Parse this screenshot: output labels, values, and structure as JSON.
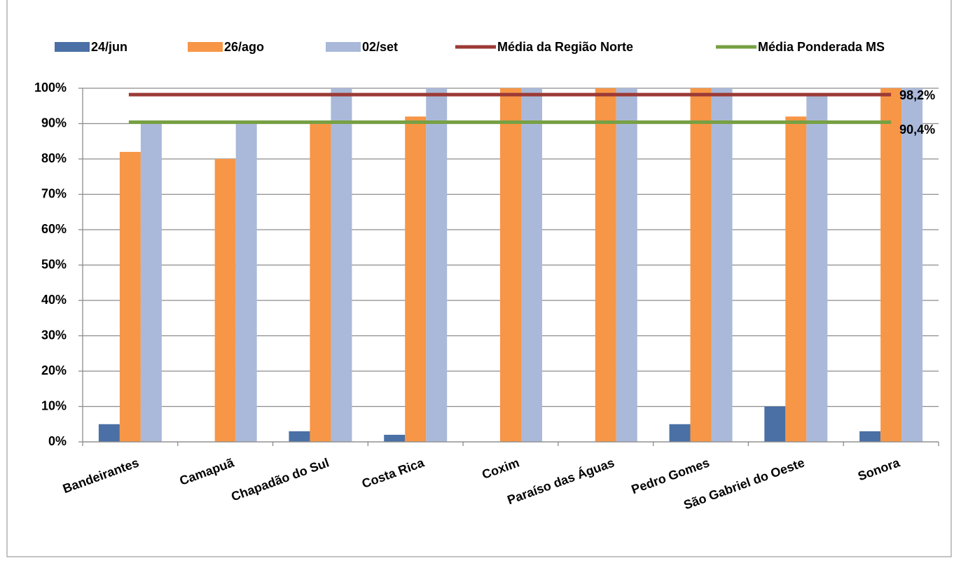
{
  "chart_data": {
    "type": "bar",
    "categories": [
      "Bandeirantes",
      "Camapuã",
      "Chapadão do Sul",
      "Costa Rica",
      "Coxim",
      "Paraíso das Águas",
      "Pedro Gomes",
      "São Gabriel do Oeste",
      "Sonora"
    ],
    "series": [
      {
        "name": "24/jun",
        "color": "#4a70a5",
        "values": [
          5,
          0,
          3,
          2,
          0,
          0,
          5,
          10,
          3
        ]
      },
      {
        "name": "26/ago",
        "color": "#f79646",
        "values": [
          82,
          80,
          90,
          92,
          100,
          100,
          100,
          92,
          100
        ]
      },
      {
        "name": "02/set",
        "color": "#aab9d9",
        "values": [
          90,
          90,
          100,
          100,
          100,
          100,
          100,
          98,
          100
        ]
      }
    ],
    "reference_lines": [
      {
        "name": "Média da Região Norte",
        "color": "#9b3a36",
        "value": 98.2,
        "value_label": "98,2%"
      },
      {
        "name": "Média Ponderada MS",
        "color": "#77a043",
        "value": 90.4,
        "value_label": "90,4%"
      }
    ],
    "ylim": [
      0,
      100
    ],
    "yticks": [
      {
        "value": 0,
        "label": "0%"
      },
      {
        "value": 10,
        "label": "10%"
      },
      {
        "value": 20,
        "label": "20%"
      },
      {
        "value": 30,
        "label": "30%"
      },
      {
        "value": 40,
        "label": "40%"
      },
      {
        "value": 50,
        "label": "50%"
      },
      {
        "value": 60,
        "label": "60%"
      },
      {
        "value": 70,
        "label": "70%"
      },
      {
        "value": 80,
        "label": "80%"
      },
      {
        "value": 90,
        "label": "90%"
      },
      {
        "value": 100,
        "label": "100%"
      }
    ],
    "grid": true,
    "legend": "top"
  }
}
